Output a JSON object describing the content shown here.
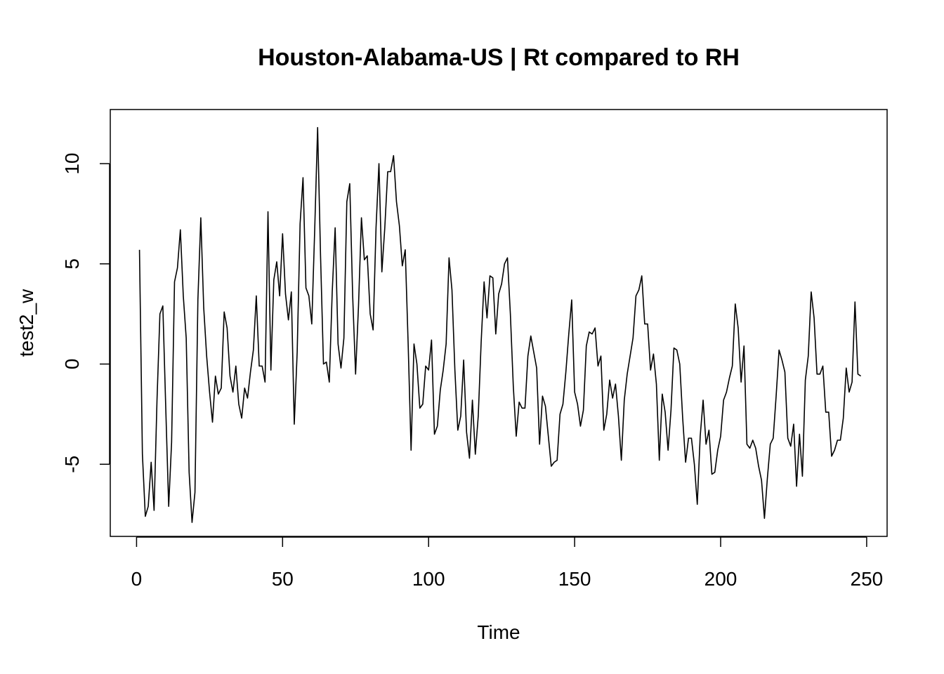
{
  "chart_data": {
    "type": "line",
    "title": "Houston-Alabama-US | Rt compared to RH",
    "xlabel": "Time",
    "ylabel": "test2_w",
    "xlim": [
      -9,
      257
    ],
    "ylim": [
      -8.6,
      12.7
    ],
    "xticks": [
      0,
      50,
      100,
      150,
      200,
      250
    ],
    "xtick_labels": [
      "0",
      "50",
      "100",
      "150",
      "200",
      "250"
    ],
    "yticks": [
      -5,
      0,
      5,
      10
    ],
    "ytick_labels": [
      "-5",
      "0",
      "5",
      "10"
    ],
    "grid": false,
    "legend": "none",
    "line_color": "#000000",
    "series": [
      {
        "x": [
          1,
          2,
          3,
          4,
          5,
          6,
          7,
          8,
          9,
          10,
          11,
          12,
          13,
          14,
          15,
          16,
          17,
          18,
          19,
          20,
          21,
          22,
          23,
          24,
          25,
          26,
          27,
          28,
          29,
          30,
          31,
          32,
          33,
          34,
          35,
          36,
          37,
          38,
          39,
          40,
          41,
          42,
          43,
          44,
          45,
          46,
          47,
          48,
          49,
          50,
          51,
          52,
          53,
          54,
          55,
          56,
          57,
          58,
          59,
          60,
          61,
          62,
          63,
          64,
          65,
          66,
          67,
          68,
          69,
          70,
          71,
          72,
          73,
          74,
          75,
          76,
          77,
          78,
          79,
          80,
          81,
          82,
          83,
          84,
          85,
          86,
          87,
          88,
          89,
          90,
          91,
          92,
          93,
          94,
          95,
          96,
          97,
          98,
          99,
          100,
          101,
          102,
          103,
          104,
          105,
          106,
          107,
          108,
          109,
          110,
          111,
          112,
          113,
          114,
          115,
          116,
          117,
          118,
          119,
          120,
          121,
          122,
          123,
          124,
          125,
          126,
          127,
          128,
          129,
          130,
          131,
          132,
          133,
          134,
          135,
          136,
          137,
          138,
          139,
          140,
          141,
          142,
          143,
          144,
          145,
          146,
          147,
          148,
          149,
          150,
          151,
          152,
          153,
          154,
          155,
          156,
          157,
          158,
          159,
          160,
          161,
          162,
          163,
          164,
          165,
          166,
          167,
          168,
          169,
          170,
          171,
          172,
          173,
          174,
          175,
          176,
          177,
          178,
          179,
          180,
          181,
          182,
          183,
          184,
          185,
          186,
          187,
          188,
          189,
          190,
          191,
          192,
          193,
          194,
          195,
          196,
          197,
          198,
          199,
          200,
          201,
          202,
          203,
          204,
          205,
          206,
          207,
          208,
          209,
          210,
          211,
          212,
          213,
          214,
          215,
          216,
          217,
          218,
          219,
          220,
          221,
          222,
          223,
          224,
          225,
          226,
          227,
          228,
          229,
          230,
          231,
          232,
          233,
          234,
          235,
          236,
          237,
          238,
          239,
          240,
          241,
          242,
          243,
          244,
          245,
          246,
          247,
          248
        ],
        "values": [
          5.7,
          -4.5,
          -7.6,
          -7.1,
          -4.9,
          -7.3,
          -1.8,
          2.5,
          2.9,
          -2.2,
          -7.1,
          -3.9,
          4.1,
          4.8,
          6.7,
          3.4,
          1.3,
          -5.4,
          -7.9,
          -6.4,
          3.2,
          7.3,
          2.8,
          0.4,
          -1.4,
          -2.9,
          -0.6,
          -1.5,
          -1.2,
          2.6,
          1.8,
          -0.6,
          -1.4,
          -0.1,
          -2.0,
          -2.7,
          -1.2,
          -1.7,
          -0.4,
          0.7,
          3.4,
          -0.1,
          -0.1,
          -0.9,
          7.6,
          -0.3,
          4.2,
          5.1,
          3.4,
          6.5,
          3.5,
          2.2,
          3.6,
          -3.0,
          0.6,
          7.0,
          9.3,
          3.8,
          3.4,
          2.0,
          6.7,
          11.8,
          5.4,
          0.0,
          0.1,
          -0.9,
          3.6,
          6.8,
          1.0,
          -0.2,
          1.3,
          8.1,
          9.0,
          3.4,
          -0.5,
          2.9,
          7.3,
          5.2,
          5.4,
          2.5,
          1.7,
          6.8,
          10.0,
          4.6,
          6.8,
          9.6,
          9.6,
          10.4,
          8.1,
          6.9,
          4.9,
          5.7,
          1.0,
          -4.3,
          1.0,
          0.0,
          -2.2,
          -2.0,
          -0.1,
          -0.3,
          1.2,
          -3.5,
          -3.1,
          -1.3,
          -0.3,
          1.0,
          5.3,
          3.7,
          -0.3,
          -3.3,
          -2.6,
          0.2,
          -3.4,
          -4.7,
          -1.8,
          -4.5,
          -2.6,
          1.1,
          4.1,
          2.3,
          4.4,
          4.3,
          1.5,
          3.5,
          4.0,
          5.0,
          5.3,
          2.5,
          -1.1,
          -3.6,
          -1.9,
          -2.2,
          -2.2,
          0.4,
          1.4,
          0.6,
          -0.2,
          -4.0,
          -1.6,
          -2.1,
          -3.6,
          -5.1,
          -4.9,
          -4.8,
          -2.5,
          -2.0,
          -0.4,
          1.5,
          3.2,
          -1.4,
          -2.0,
          -3.1,
          -2.3,
          0.9,
          1.6,
          1.5,
          1.8,
          -0.1,
          0.4,
          -3.3,
          -2.5,
          -0.8,
          -1.7,
          -1.0,
          -2.6,
          -4.8,
          -1.8,
          -0.5,
          0.4,
          1.3,
          3.4,
          3.7,
          4.4,
          2.0,
          2.0,
          -0.3,
          0.5,
          -1.0,
          -4.8,
          -1.5,
          -2.4,
          -4.3,
          -2.3,
          0.8,
          0.7,
          0.0,
          -2.7,
          -4.9,
          -3.7,
          -3.7,
          -5.0,
          -7.0,
          -3.6,
          -1.8,
          -4.0,
          -3.3,
          -5.5,
          -5.4,
          -4.3,
          -3.6,
          -1.8,
          -1.4,
          -0.7,
          -0.1,
          3.0,
          1.8,
          -0.9,
          0.9,
          -4.0,
          -4.2,
          -3.8,
          -4.2,
          -5.1,
          -5.8,
          -7.7,
          -5.7,
          -4.0,
          -3.7,
          -1.6,
          0.7,
          0.2,
          -0.4,
          -3.7,
          -4.1,
          -3.0,
          -6.1,
          -3.5,
          -5.6,
          -0.8,
          0.4,
          3.6,
          2.3,
          -0.5,
          -0.5,
          -0.1,
          -2.4,
          -2.4,
          -4.6,
          -4.3,
          -3.8,
          -3.8,
          -2.7,
          -0.2,
          -1.4,
          -0.9,
          3.1,
          -0.5,
          -0.6
        ]
      }
    ]
  }
}
